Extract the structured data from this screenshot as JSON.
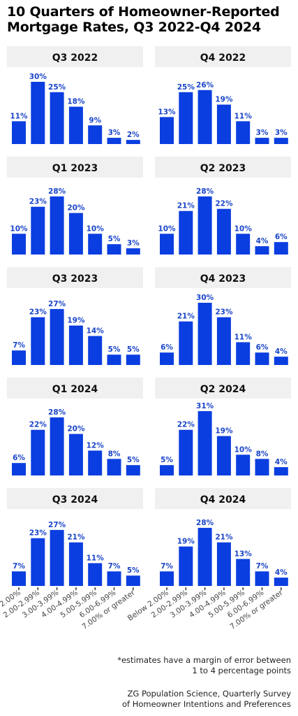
{
  "title_line1": "10 Quarters of Homeowner-Reported",
  "title_line2": " Mortgage Rates, Q3 2022-Q4 2024",
  "footnote_line1": "*estimates have a margin of error between",
  "footnote_line2": "1 to 4 percentage points",
  "source_line1": "ZG Population Science, Quarterly Survey",
  "source_line2": "of Homeowner Intentions and Preferences",
  "colors": {
    "bar": "#0a3ee0",
    "label": "#1a45c8",
    "panel_header": "#f0f0f0"
  },
  "chart_data": {
    "type": "bar",
    "facet": "small-multiples-2-columns",
    "value_unit": "%",
    "categories": [
      "Below 2.00%",
      "2.00-2.99%",
      "3.00-3.99%",
      "4.00-4.99%",
      "5.00-5.99%",
      "6.00-6.99%",
      "7.00% or greater"
    ],
    "ylim": [
      0,
      31
    ],
    "grid": false,
    "panels": [
      {
        "name": "Q3 2022",
        "values": [
          11,
          30,
          25,
          18,
          9,
          3,
          2
        ]
      },
      {
        "name": "Q4 2022",
        "values": [
          13,
          25,
          26,
          19,
          11,
          3,
          3
        ]
      },
      {
        "name": "Q1 2023",
        "values": [
          10,
          23,
          28,
          20,
          10,
          5,
          3
        ]
      },
      {
        "name": "Q2 2023",
        "values": [
          10,
          21,
          28,
          22,
          10,
          4,
          6
        ]
      },
      {
        "name": "Q3 2023",
        "values": [
          7,
          23,
          27,
          19,
          14,
          5,
          5
        ]
      },
      {
        "name": "Q4 2023",
        "values": [
          6,
          21,
          30,
          23,
          11,
          6,
          4
        ]
      },
      {
        "name": "Q1 2024",
        "values": [
          6,
          22,
          28,
          20,
          12,
          8,
          5
        ]
      },
      {
        "name": "Q2 2024",
        "values": [
          5,
          22,
          31,
          19,
          10,
          8,
          4
        ]
      },
      {
        "name": "Q3 2024",
        "values": [
          7,
          23,
          27,
          21,
          11,
          7,
          5
        ]
      },
      {
        "name": "Q4 2024",
        "values": [
          7,
          19,
          28,
          21,
          13,
          7,
          4
        ]
      }
    ]
  }
}
